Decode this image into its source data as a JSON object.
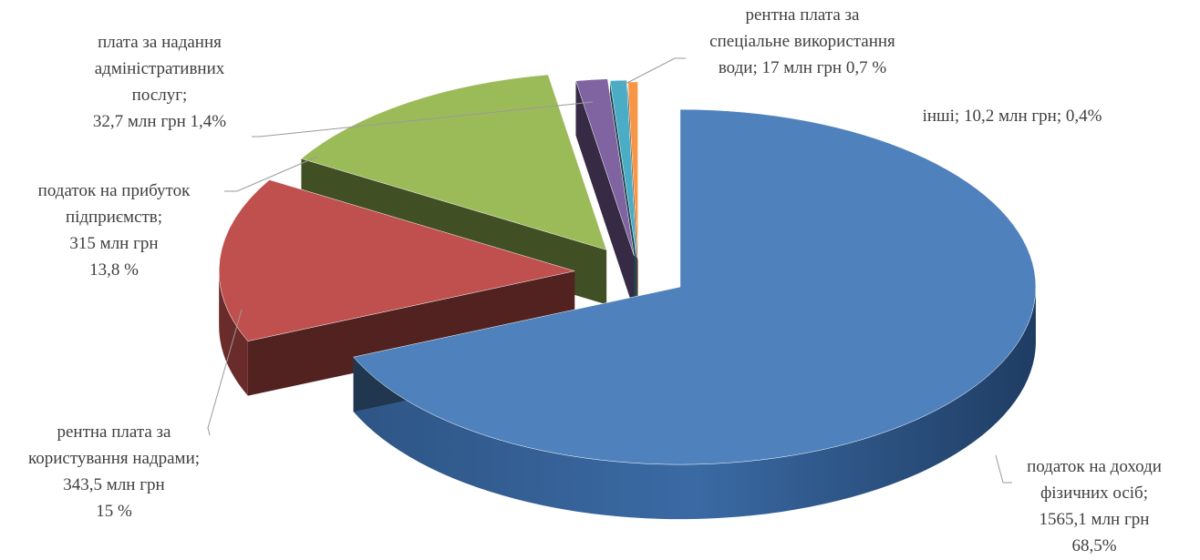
{
  "chart_data": {
    "type": "pie",
    "title": "",
    "unit": "млн грн",
    "slices": [
      {
        "name": "податок на доходи фізичних осіб",
        "value": 1565.1,
        "percent": 68.5,
        "color": "#4f81bd",
        "label_lines": [
          "податок на доходи",
          "фізичних осіб;",
          "1565,1 млн грн",
          "68,5%"
        ]
      },
      {
        "name": "рентна плата за користування надрами",
        "value": 343.5,
        "percent": 15,
        "color": "#c0504d",
        "label_lines": [
          "рентна плата за",
          "користування надрами;",
          "343,5 млн грн",
          "15 %"
        ]
      },
      {
        "name": "податок на прибуток підприємств",
        "value": 315,
        "percent": 13.8,
        "color": "#9bbb59",
        "label_lines": [
          "податок на прибуток",
          "підприємств;",
          "315 млн грн",
          "13,8 %"
        ]
      },
      {
        "name": "плата за надання адміністративних послуг",
        "value": 32.7,
        "percent": 1.4,
        "color": "#8064a2",
        "label_lines": [
          "плата за надання",
          "адміністративних",
          "послуг;",
          "32,7 млн грн 1,4%"
        ]
      },
      {
        "name": "рентна плата за спеціальне використання води",
        "value": 17,
        "percent": 0.7,
        "color": "#4bacc6",
        "label_lines": [
          "рентна плата за",
          "спеціальне використання",
          "води; 17 млн грн 0,7 %"
        ]
      },
      {
        "name": "інші",
        "value": 10.2,
        "percent": 0.4,
        "color": "#f79646",
        "label_lines": [
          "інші; 10,2 млн грн; 0,4%"
        ]
      }
    ]
  }
}
